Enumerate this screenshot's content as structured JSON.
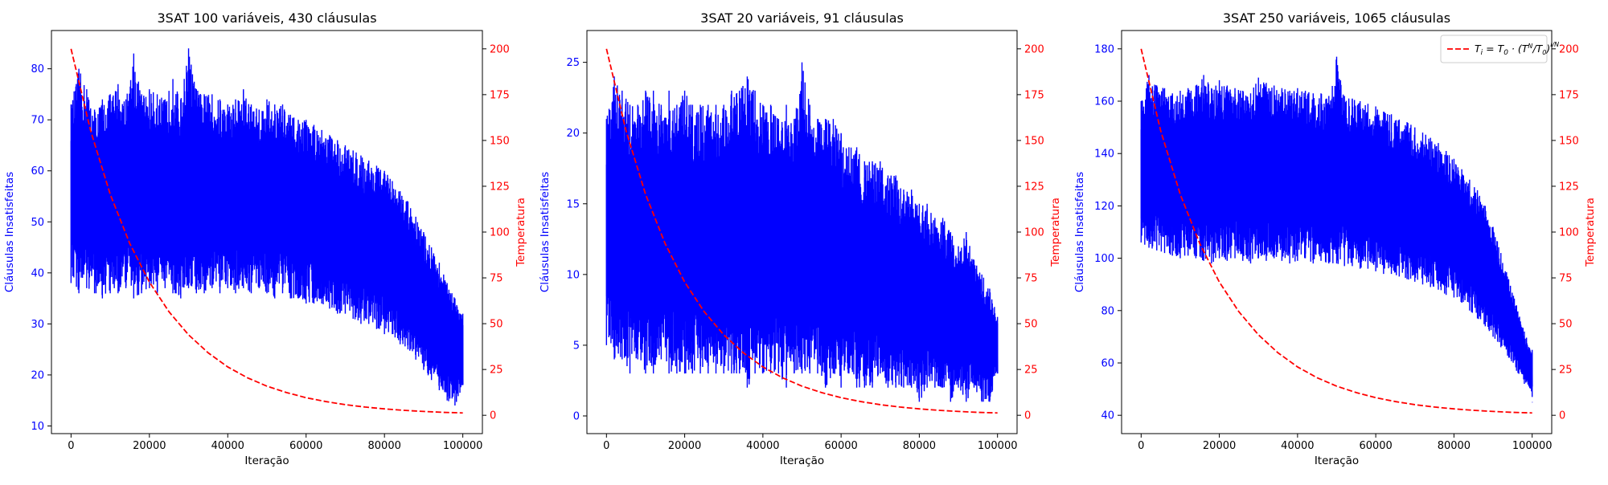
{
  "figure": {
    "colors": {
      "primary": "#0000ff",
      "secondary": "#ff0000",
      "axes": "#000000",
      "background": "#ffffff"
    }
  },
  "chart_data": [
    {
      "type": "line",
      "title": "3SAT 100 variáveis, 430 cláusulas",
      "xlabel": "Iteração",
      "ylabel": "Cláusulas Insatisfeitas",
      "y2label": "Temperatura",
      "xlim": [
        -5000,
        105000
      ],
      "ylim": [
        8.5,
        87.5
      ],
      "y2lim": [
        -10,
        210
      ],
      "xticks": [
        0,
        20000,
        40000,
        60000,
        80000,
        100000
      ],
      "xtick_labels": [
        "0",
        "20000",
        "40000",
        "60000",
        "80000",
        "100000"
      ],
      "yticks": [
        10,
        20,
        30,
        40,
        50,
        60,
        70,
        80
      ],
      "y2ticks": [
        0,
        25,
        50,
        75,
        100,
        125,
        150,
        175,
        200
      ],
      "grid": false,
      "series": [
        {
          "axis": "left",
          "color": "#0000ff",
          "style": "solid",
          "description": "noisy; plotted as a min-max envelope over the iterations",
          "x": [
            0,
            2000,
            4000,
            6000,
            8000,
            10000,
            12000,
            14000,
            16000,
            18000,
            20000,
            22000,
            24000,
            26000,
            28000,
            30000,
            32000,
            34000,
            36000,
            38000,
            40000,
            42000,
            44000,
            46000,
            48000,
            50000,
            52000,
            54000,
            56000,
            58000,
            60000,
            62000,
            64000,
            66000,
            68000,
            70000,
            72000,
            74000,
            76000,
            78000,
            80000,
            82000,
            84000,
            86000,
            88000,
            90000,
            92000,
            94000,
            96000,
            98000,
            100000
          ],
          "y_min": [
            38,
            36,
            37,
            36,
            35,
            36,
            36,
            37,
            35,
            36,
            37,
            36,
            37,
            36,
            35,
            37,
            36,
            36,
            37,
            36,
            37,
            36,
            37,
            36,
            37,
            36,
            35,
            36,
            35,
            35,
            34,
            34,
            34,
            33,
            32,
            32,
            31,
            30,
            30,
            29,
            28,
            28,
            26,
            25,
            23,
            21,
            19,
            17,
            15,
            14,
            18
          ],
          "y_max": [
            73,
            80,
            76,
            72,
            74,
            75,
            77,
            74,
            83,
            75,
            76,
            75,
            74,
            78,
            74,
            84,
            76,
            75,
            75,
            74,
            73,
            74,
            76,
            73,
            72,
            74,
            73,
            73,
            71,
            70,
            70,
            69,
            68,
            67,
            66,
            65,
            64,
            63,
            62,
            61,
            60,
            58,
            56,
            54,
            51,
            48,
            45,
            42,
            38,
            35,
            32
          ],
          "y_end": 26
        },
        {
          "name": "T_i = T_0 · (T_N / T_0)^(i/N)",
          "axis": "right",
          "color": "#ff0000",
          "style": "dashed",
          "x": [
            0,
            5000,
            10000,
            15000,
            20000,
            25000,
            30000,
            35000,
            40000,
            45000,
            50000,
            55000,
            60000,
            65000,
            70000,
            75000,
            80000,
            85000,
            90000,
            95000,
            100000
          ],
          "y": [
            200,
            155.3,
            120.6,
            93.7,
            72.7,
            56.5,
            43.9,
            34.1,
            26.4,
            20.5,
            15.9,
            12.4,
            9.6,
            7.5,
            5.8,
            4.5,
            3.5,
            2.7,
            2.1,
            1.6,
            1.3
          ]
        }
      ]
    },
    {
      "type": "line",
      "title": "3SAT 20 variáveis, 91 cláusulas",
      "xlabel": "Iteração",
      "ylabel": "Cláusulas Insatisfeitas",
      "y2label": "Temperatura",
      "xlim": [
        -5000,
        105000
      ],
      "ylim": [
        -1.25,
        27.25
      ],
      "y2lim": [
        -10,
        210
      ],
      "xticks": [
        0,
        20000,
        40000,
        60000,
        80000,
        100000
      ],
      "xtick_labels": [
        "0",
        "20000",
        "40000",
        "60000",
        "80000",
        "100000"
      ],
      "yticks": [
        0,
        5,
        10,
        15,
        20,
        25
      ],
      "y2ticks": [
        0,
        25,
        50,
        75,
        100,
        125,
        150,
        175,
        200
      ],
      "grid": false,
      "series": [
        {
          "axis": "left",
          "color": "#0000ff",
          "style": "solid",
          "description": "noisy; plotted as a min-max envelope over the iterations",
          "x": [
            0,
            2000,
            4000,
            6000,
            8000,
            10000,
            12000,
            14000,
            16000,
            18000,
            20000,
            22000,
            24000,
            26000,
            28000,
            30000,
            32000,
            34000,
            36000,
            38000,
            40000,
            42000,
            44000,
            46000,
            48000,
            50000,
            52000,
            54000,
            56000,
            58000,
            60000,
            62000,
            64000,
            66000,
            68000,
            70000,
            72000,
            74000,
            76000,
            78000,
            80000,
            82000,
            84000,
            86000,
            88000,
            90000,
            92000,
            94000,
            96000,
            98000,
            100000
          ],
          "y_min": [
            5,
            4,
            4,
            3,
            4,
            3,
            3,
            4,
            3,
            3,
            3,
            3,
            3,
            3,
            3,
            3,
            3,
            3,
            2,
            3,
            3,
            3,
            3,
            2,
            3,
            3,
            3,
            3,
            2,
            3,
            2,
            3,
            2,
            2,
            2,
            3,
            2,
            2,
            2,
            2,
            1,
            2,
            2,
            2,
            1,
            2,
            1,
            2,
            1,
            1,
            3
          ],
          "y_max": [
            21,
            24,
            23,
            22,
            22,
            23,
            23,
            22,
            23,
            22,
            23,
            22,
            22,
            22,
            22,
            22,
            23,
            23,
            24,
            23,
            22,
            22,
            21,
            22,
            21,
            25,
            22,
            21,
            21,
            21,
            20,
            19,
            19,
            18,
            18,
            18,
            17,
            17,
            16,
            16,
            15,
            15,
            14,
            14,
            13,
            12,
            13,
            11,
            10,
            9,
            7
          ],
          "y_end": 5
        },
        {
          "name": "T_i = T_0 · (T_N / T_0)^(i/N)",
          "axis": "right",
          "color": "#ff0000",
          "style": "dashed",
          "x": [
            0,
            5000,
            10000,
            15000,
            20000,
            25000,
            30000,
            35000,
            40000,
            45000,
            50000,
            55000,
            60000,
            65000,
            70000,
            75000,
            80000,
            85000,
            90000,
            95000,
            100000
          ],
          "y": [
            200,
            155.3,
            120.6,
            93.7,
            72.7,
            56.5,
            43.9,
            34.1,
            26.4,
            20.5,
            15.9,
            12.4,
            9.6,
            7.5,
            5.8,
            4.5,
            3.5,
            2.7,
            2.1,
            1.6,
            1.3
          ]
        }
      ]
    },
    {
      "type": "line",
      "title": "3SAT 250 variáveis, 1065 cláusulas",
      "xlabel": "Iteração",
      "ylabel": "Cláusulas Insatisfeitas",
      "y2label": "Temperatura",
      "xlim": [
        -5000,
        105000
      ],
      "ylim": [
        33,
        187
      ],
      "y2lim": [
        -10,
        210
      ],
      "xticks": [
        0,
        20000,
        40000,
        60000,
        80000,
        100000
      ],
      "xtick_labels": [
        "0",
        "20000",
        "40000",
        "60000",
        "80000",
        "100000"
      ],
      "yticks": [
        40,
        60,
        80,
        100,
        120,
        140,
        160,
        180
      ],
      "y2ticks": [
        0,
        25,
        50,
        75,
        100,
        125,
        150,
        175,
        200
      ],
      "grid": false,
      "legend": {
        "placement": "top-right",
        "entries": [
          {
            "label": "T_i = T_0 · (T_N / T_0)^(i/N)",
            "color": "#ff0000",
            "style": "dashed"
          }
        ]
      },
      "series": [
        {
          "axis": "left",
          "color": "#0000ff",
          "style": "solid",
          "description": "noisy; plotted as a min-max envelope over the iterations",
          "x": [
            0,
            2000,
            4000,
            6000,
            8000,
            10000,
            12000,
            14000,
            16000,
            18000,
            20000,
            22000,
            24000,
            26000,
            28000,
            30000,
            32000,
            34000,
            36000,
            38000,
            40000,
            42000,
            44000,
            46000,
            48000,
            50000,
            52000,
            54000,
            56000,
            58000,
            60000,
            62000,
            64000,
            66000,
            68000,
            70000,
            72000,
            74000,
            76000,
            78000,
            80000,
            82000,
            84000,
            86000,
            88000,
            90000,
            92000,
            94000,
            96000,
            98000,
            100000
          ],
          "y_min": [
            106,
            104,
            103,
            102,
            101,
            100,
            101,
            100,
            99,
            98,
            100,
            99,
            100,
            99,
            98,
            100,
            99,
            100,
            99,
            98,
            99,
            100,
            98,
            99,
            98,
            98,
            97,
            97,
            96,
            96,
            95,
            94,
            94,
            93,
            92,
            91,
            90,
            89,
            88,
            86,
            85,
            83,
            80,
            77,
            74,
            70,
            66,
            62,
            57,
            52,
            47
          ],
          "y_max": [
            160,
            170,
            166,
            165,
            163,
            164,
            165,
            166,
            170,
            165,
            168,
            166,
            165,
            164,
            163,
            169,
            167,
            166,
            165,
            164,
            165,
            164,
            163,
            163,
            162,
            177,
            162,
            161,
            160,
            159,
            158,
            156,
            155,
            153,
            152,
            150,
            148,
            146,
            144,
            141,
            138,
            134,
            130,
            126,
            120,
            112,
            102,
            92,
            82,
            72,
            65
          ],
          "y_end": 45
        },
        {
          "name": "T_i = T_0 · (T_N / T_0)^(i/N)",
          "axis": "right",
          "color": "#ff0000",
          "style": "dashed",
          "x": [
            0,
            5000,
            10000,
            15000,
            20000,
            25000,
            30000,
            35000,
            40000,
            45000,
            50000,
            55000,
            60000,
            65000,
            70000,
            75000,
            80000,
            85000,
            90000,
            95000,
            100000
          ],
          "y": [
            200,
            155.3,
            120.6,
            93.7,
            72.7,
            56.5,
            43.9,
            34.1,
            26.4,
            20.5,
            15.9,
            12.4,
            9.6,
            7.5,
            5.8,
            4.5,
            3.5,
            2.7,
            2.1,
            1.6,
            1.3
          ]
        }
      ]
    }
  ]
}
